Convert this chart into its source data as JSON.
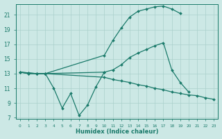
{
  "background_color": "#cce8e5",
  "grid_color": "#aad0cc",
  "line_color": "#1a7a6a",
  "xlabel": "Humidex (Indice chaleur)",
  "xlim": [
    -0.5,
    23.5
  ],
  "ylim": [
    6.8,
    22.5
  ],
  "yticks": [
    7,
    9,
    11,
    13,
    15,
    17,
    19,
    21
  ],
  "xticks": [
    0,
    1,
    2,
    3,
    4,
    5,
    6,
    7,
    8,
    9,
    10,
    11,
    12,
    13,
    14,
    15,
    16,
    17,
    18,
    19,
    20,
    21,
    22,
    23
  ],
  "line1_x": [
    0,
    1,
    2,
    3,
    4,
    5,
    6,
    7,
    8,
    9,
    10
  ],
  "line1_y": [
    13.2,
    13.1,
    13.0,
    13.0,
    11.0,
    8.3,
    10.3,
    7.3,
    8.7,
    11.2,
    13.2
  ],
  "line2_x": [
    0,
    1,
    2,
    3,
    10,
    11,
    12,
    13,
    14,
    15,
    16,
    17,
    18,
    19
  ],
  "line2_y": [
    13.2,
    13.1,
    13.0,
    13.0,
    15.5,
    17.5,
    19.2,
    20.7,
    21.5,
    21.8,
    22.1,
    22.2,
    21.8,
    21.2
  ],
  "line3_x": [
    0,
    1,
    2,
    3,
    10,
    11,
    12,
    13,
    14,
    15,
    16,
    17,
    18,
    19,
    20
  ],
  "line3_y": [
    13.2,
    13.0,
    13.0,
    13.0,
    13.2,
    13.5,
    14.2,
    15.2,
    15.8,
    16.3,
    16.8,
    17.2,
    13.5,
    11.8,
    10.5
  ],
  "line4_x": [
    0,
    1,
    2,
    3,
    10,
    11,
    12,
    13,
    14,
    15,
    16,
    17,
    18,
    19,
    20,
    21,
    22,
    23
  ],
  "line4_y": [
    13.2,
    13.0,
    13.0,
    13.0,
    12.5,
    12.2,
    12.0,
    11.8,
    11.5,
    11.3,
    11.0,
    10.8,
    10.5,
    10.3,
    10.1,
    10.0,
    9.7,
    9.5
  ]
}
